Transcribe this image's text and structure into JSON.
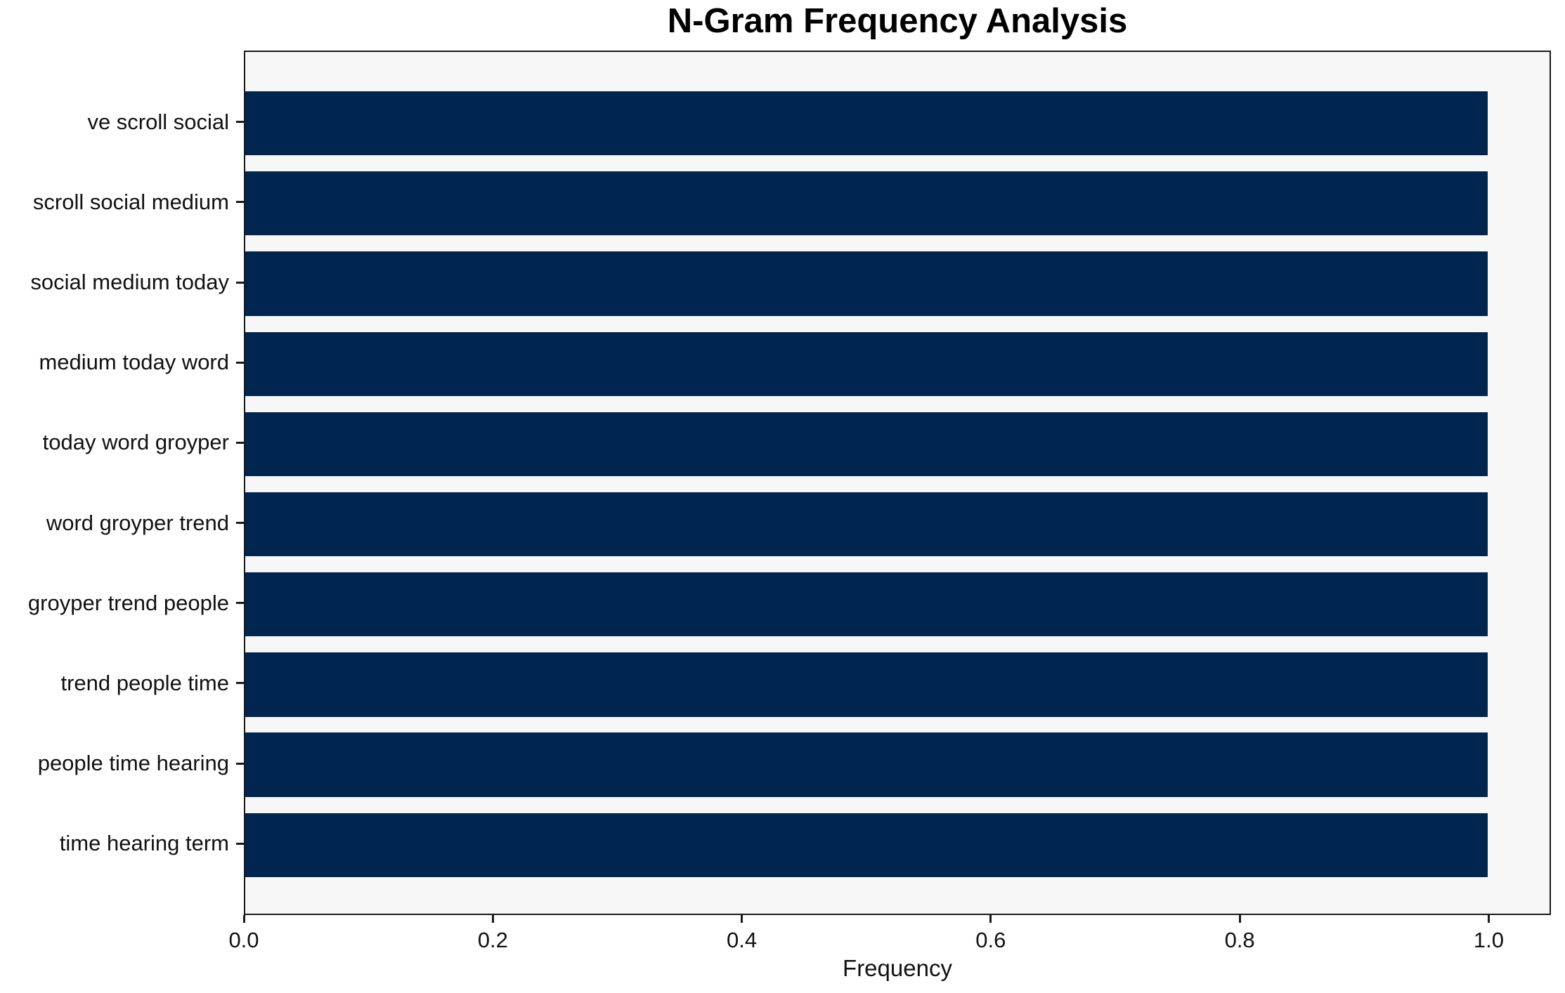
{
  "chart_data": {
    "type": "bar",
    "orientation": "horizontal",
    "title": "N-Gram Frequency Analysis",
    "xlabel": "Frequency",
    "ylabel": "",
    "categories": [
      "ve scroll social",
      "scroll social medium",
      "social medium today",
      "medium today word",
      "today word groyper",
      "word groyper trend",
      "groyper trend people",
      "trend people time",
      "people time hearing",
      "time hearing term"
    ],
    "values": [
      1.0,
      1.0,
      1.0,
      1.0,
      1.0,
      1.0,
      1.0,
      1.0,
      1.0,
      1.0
    ],
    "xlim": [
      0.0,
      1.05
    ],
    "x_ticks": [
      "0.0",
      "0.2",
      "0.4",
      "0.6",
      "0.8",
      "1.0"
    ],
    "x_tick_values": [
      0.0,
      0.2,
      0.4,
      0.6,
      0.8,
      1.0
    ],
    "grid": false,
    "legend": null,
    "bar_color": "#00254e",
    "plot_bg_color": "#f7f7f7",
    "fig_bg_color": "#ffffff"
  }
}
